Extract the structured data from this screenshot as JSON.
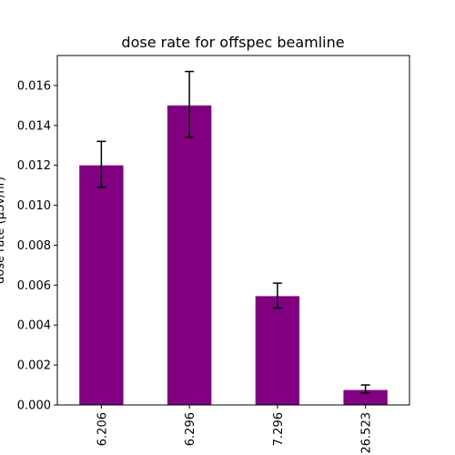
{
  "chart_data": {
    "type": "bar",
    "title": "dose rate for offspec beamline",
    "xlabel": "",
    "ylabel": "dose rate (µSv/hr)",
    "categories": [
      "6.206",
      "6.296",
      "7.296",
      "26.523"
    ],
    "values": [
      0.012,
      0.015,
      0.00545,
      0.00075
    ],
    "error_low": [
      0.0109,
      0.0134,
      0.00485,
      0.0006
    ],
    "error_high": [
      0.0132,
      0.0167,
      0.0061,
      0.001
    ],
    "ylim": [
      0,
      0.0175
    ],
    "yticks": [
      "0.000",
      "0.002",
      "0.004",
      "0.006",
      "0.008",
      "0.010",
      "0.012",
      "0.014",
      "0.016"
    ],
    "ytick_values": [
      0,
      0.002,
      0.004,
      0.006,
      0.008,
      0.01,
      0.012,
      0.014,
      0.016
    ],
    "bar_color": "#800080",
    "error_color": "#000000",
    "grid": false,
    "legend": "none"
  }
}
